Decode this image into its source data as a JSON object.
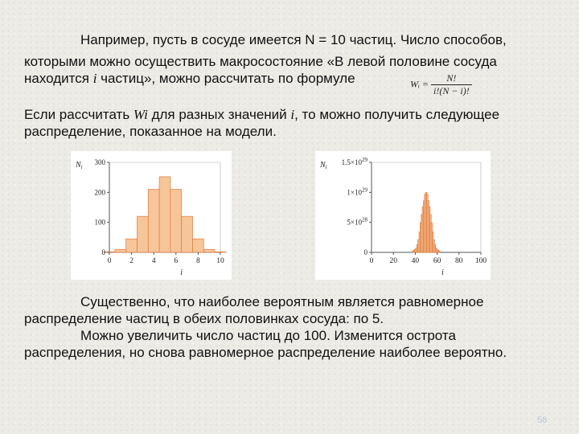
{
  "paragraph1": {
    "line1": "Например, пусть в сосуде имеется N = 10 частиц. Число способов,",
    "line2": "которыми можно осуществить макросостояние «В левой половине сосуда",
    "line3_a": "находится ",
    "line3_var": "i",
    "line3_b": " частиц», можно рассчитать по формуле"
  },
  "formula": {
    "lhs": "Wᵢ =",
    "numerator": "N!",
    "denominator": "i!(N − i)!"
  },
  "paragraph2": {
    "line1_a": "Если рассчитать ",
    "line1_var": "Wi",
    "line1_b": " для разных значений ",
    "line1_var2": "i",
    "line1_c": ", то можно получить следующее",
    "line2": "распределение, показанное на модели."
  },
  "paragraph3": {
    "line1": "Существенно, что наиболее вероятным является равномерное",
    "line2": "распределение частиц в обеих половинках сосуда: по 5.",
    "line3": "Можно увеличить число частиц до 100. Изменится острота",
    "line4": "распределения, но снова равномерное распределение наиболее вероятно."
  },
  "page_number": "58",
  "colors": {
    "bar_fill": "#f7c59a",
    "bar_stroke": "#e07a3c",
    "axis": "#555555"
  },
  "chart_data": [
    {
      "type": "bar",
      "title": "",
      "ylabel": "Ni",
      "xlabel": "i",
      "x": [
        0,
        1,
        2,
        3,
        4,
        5,
        6,
        7,
        8,
        9,
        10
      ],
      "values": [
        1,
        10,
        45,
        120,
        210,
        252,
        210,
        120,
        45,
        10,
        1
      ],
      "xlim": [
        0,
        10
      ],
      "ylim": [
        0,
        300
      ],
      "xticks": [
        "0",
        "2",
        "4",
        "6",
        "8",
        "10"
      ],
      "yticks": [
        "0",
        "100",
        "200",
        "300"
      ]
    },
    {
      "type": "bar",
      "title": "",
      "ylabel": "Ni",
      "xlabel": "i",
      "x": [
        38,
        39,
        40,
        41,
        42,
        43,
        44,
        45,
        46,
        47,
        48,
        49,
        50,
        51,
        52,
        53,
        54,
        55,
        56,
        57,
        58,
        59,
        60,
        61,
        62
      ],
      "values": [
        2.3e+27,
        3.7e+27,
        5.1e+27,
        7.5e+27,
        1.3e+28,
        2.1e+28,
        3.4e+28,
        4.9e+28,
        6.3e+28,
        7.6e+28,
        8.6e+28,
        9.7e+28,
        1e+29,
        9.7e+28,
        8.6e+28,
        7.6e+28,
        6.3e+28,
        4.9e+28,
        3.4e+28,
        2.1e+28,
        1.3e+28,
        7.5e+27,
        5.1e+27,
        3.7e+27,
        2.3e+27
      ],
      "xlim": [
        0,
        100
      ],
      "ylim": [
        0,
        1.5e+29
      ],
      "xticks": [
        "0",
        "20",
        "40",
        "60",
        "80",
        "100"
      ],
      "yticks": [
        "0",
        "5×10^28",
        "1×10^29",
        "1.5×10^29"
      ]
    }
  ]
}
